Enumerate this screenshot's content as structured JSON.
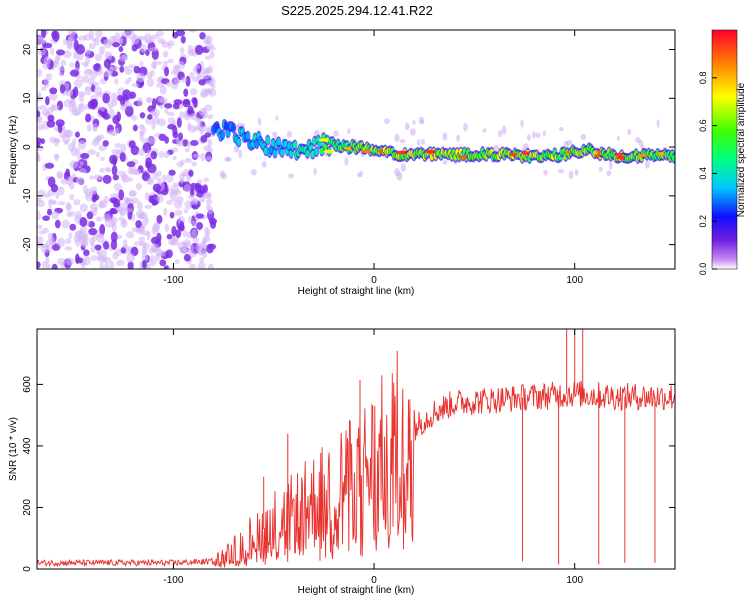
{
  "title": "S225.2025.294.12.41.R22",
  "colors": {
    "snr_line": "#e8322e",
    "speckle": "#7b2be3",
    "axis": "#000000"
  },
  "chart_data": [
    {
      "type": "heatmap",
      "title": "S225.2025.294.12.41.R22",
      "xlabel": "Height of straight line (km)",
      "ylabel": "Frequency (Hz)",
      "xlim": [
        -168,
        150
      ],
      "ylim": [
        -25,
        24
      ],
      "xticks": [
        -100,
        0,
        100
      ],
      "yticks": [
        -20,
        -10,
        0,
        10,
        20
      ],
      "colorbar": {
        "label": "Normalized spectral amplitude",
        "range": [
          0,
          1
        ],
        "ticks": [
          0.0,
          0.2,
          0.4,
          0.6,
          0.8
        ]
      },
      "noise_region_x": [
        -168,
        -80
      ],
      "carrier_trace": {
        "x": [
          -82,
          -75,
          -65,
          -55,
          -45,
          -35,
          -25,
          -15,
          -5,
          5,
          15,
          30,
          45,
          60,
          75,
          85,
          95,
          105,
          115,
          125,
          135,
          150
        ],
        "freq": [
          3.0,
          3.5,
          2.0,
          0.5,
          0.0,
          -0.5,
          0.5,
          0.0,
          0.0,
          -1.0,
          -1.5,
          -1.5,
          -1.5,
          -1.5,
          -1.8,
          -2.0,
          -1.5,
          -0.5,
          -1.5,
          -1.8,
          -1.8,
          -1.8
        ],
        "amplitude": [
          0.35,
          0.45,
          0.5,
          0.55,
          0.55,
          0.6,
          0.7,
          0.8,
          0.85,
          0.9,
          0.95,
          0.95,
          0.9,
          0.9,
          0.95,
          0.9,
          0.85,
          0.95,
          0.9,
          0.95,
          0.85,
          0.8
        ]
      }
    },
    {
      "type": "line",
      "xlabel": "Height of straight line (km)",
      "ylabel": "SNR (10 * v/v)",
      "xlim": [
        -168,
        150
      ],
      "ylim": [
        0,
        780
      ],
      "xticks": [
        -100,
        0,
        100
      ],
      "yticks": [
        0,
        200,
        400,
        600
      ],
      "envelope": {
        "x": [
          -168,
          -100,
          -80,
          -70,
          -60,
          -50,
          -40,
          -30,
          -20,
          -10,
          0,
          10,
          20,
          30,
          40,
          60,
          80,
          100,
          120,
          150
        ],
        "y": [
          20,
          20,
          25,
          60,
          110,
          150,
          180,
          220,
          260,
          300,
          340,
          400,
          460,
          510,
          540,
          550,
          560,
          570,
          560,
          560
        ]
      },
      "spikes": [
        {
          "x": -55,
          "y": 300
        },
        {
          "x": -43,
          "y": 440
        },
        {
          "x": -7,
          "y": 615
        },
        {
          "x": 74,
          "y": 25
        },
        {
          "x": 92,
          "y": 15
        },
        {
          "x": 96,
          "y": 780
        },
        {
          "x": 100,
          "y": 780
        },
        {
          "x": 104,
          "y": 780
        },
        {
          "x": 112,
          "y": 15
        },
        {
          "x": 125,
          "y": 20
        },
        {
          "x": 140,
          "y": 20
        }
      ]
    }
  ]
}
